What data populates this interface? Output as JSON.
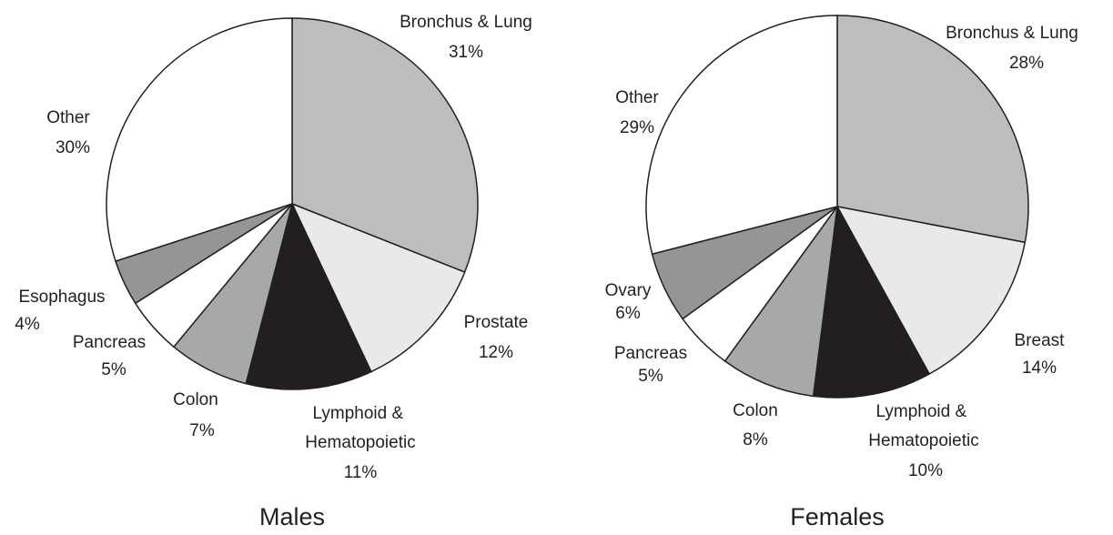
{
  "chart_data": [
    {
      "type": "pie",
      "title": "Males",
      "categories": [
        "Bronchus & Lung",
        "Prostate",
        "Lymphoid & Hematopoietic",
        "Colon",
        "Pancreas",
        "Esophagus",
        "Other"
      ],
      "values": [
        31,
        12,
        11,
        7,
        5,
        4,
        30
      ],
      "value_labels": [
        "31%",
        "12%",
        "11%",
        "7%",
        "5%",
        "4%",
        "30%"
      ],
      "colors": [
        "#bcbdbf",
        "#e8e9eb",
        "#231f20",
        "#a7a8aa",
        "#ffffff",
        "#939597",
        "#ffffff"
      ]
    },
    {
      "type": "pie",
      "title": "Females",
      "categories": [
        "Bronchus & Lung",
        "Breast",
        "Lymphoid & Hematopoietic",
        "Colon",
        "Pancreas",
        "Ovary",
        "Other"
      ],
      "values": [
        28,
        14,
        10,
        8,
        5,
        6,
        29
      ],
      "value_labels": [
        "28%",
        "14%",
        "10%",
        "8%",
        "5%",
        "6%",
        "29%"
      ],
      "colors": [
        "#bcbdbf",
        "#e8e9eb",
        "#231f20",
        "#a7a8aa",
        "#ffffff",
        "#939597",
        "#ffffff"
      ]
    }
  ]
}
